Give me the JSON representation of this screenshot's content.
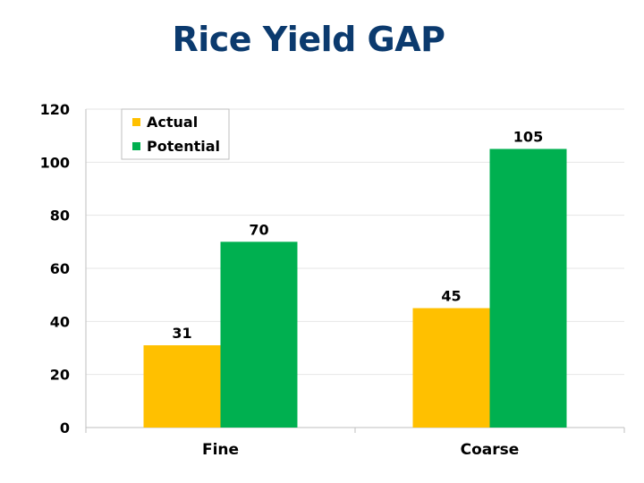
{
  "chart_data": {
    "type": "bar",
    "title": "Rice Yield GAP",
    "categories": [
      "Fine",
      "Coarse"
    ],
    "series": [
      {
        "name": "Actual",
        "values": [
          31,
          45
        ],
        "color": "#ffc000"
      },
      {
        "name": "Potential",
        "values": [
          70,
          105
        ],
        "color": "#00b050"
      }
    ],
    "ylim": [
      0,
      120
    ],
    "yticks": [
      0,
      20,
      40,
      60,
      80,
      100,
      120
    ],
    "xlabel": "",
    "ylabel": "",
    "grid": true,
    "legend_position": "top-left"
  }
}
